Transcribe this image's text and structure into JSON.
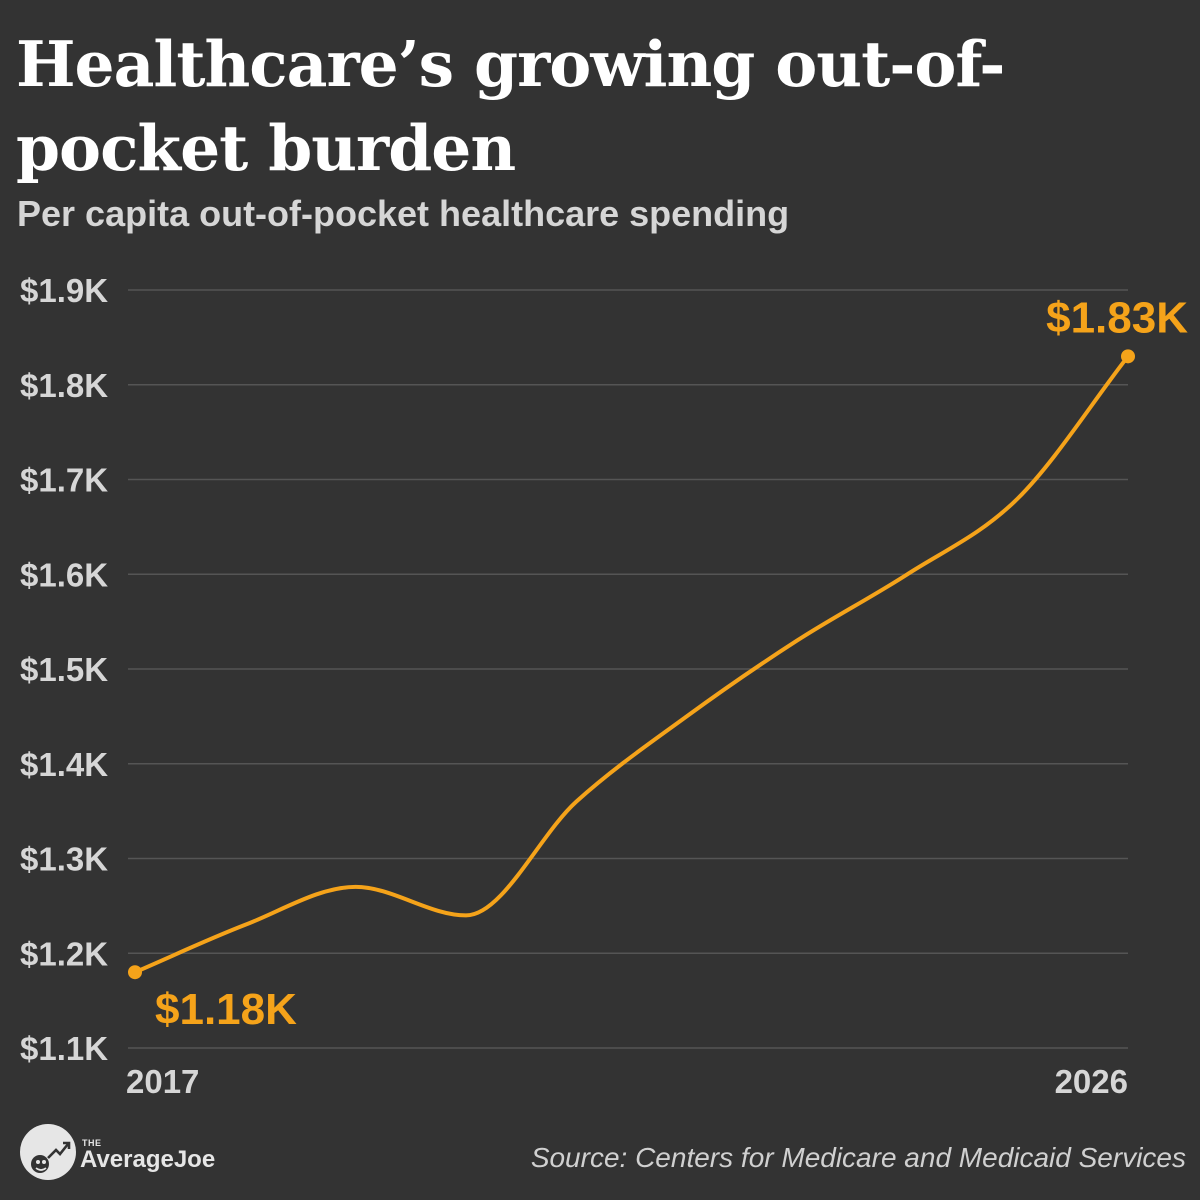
{
  "header": {
    "title": "Healthcare’s growing out-of-pocket burden",
    "subtitle": "Per capita out-of-pocket healthcare spending"
  },
  "footer": {
    "logo_small": "THE",
    "logo_name": "AverageJoe",
    "source": "Source: Centers for Medicare and Medicaid Services"
  },
  "colors": {
    "background": "#333333",
    "line": "#f5a31a",
    "grid": "#555555",
    "tick_text": "#d6d6d6"
  },
  "chart_data": {
    "type": "line",
    "title": "Healthcare’s growing out-of-pocket burden",
    "subtitle": "Per capita out-of-pocket healthcare spending",
    "xlabel": "",
    "ylabel": "",
    "x": [
      2017,
      2018,
      2019,
      2020,
      2021,
      2022,
      2023,
      2024,
      2025,
      2026
    ],
    "series": [
      {
        "values": [
          1.18,
          1.23,
          1.27,
          1.24,
          1.36,
          1.45,
          1.53,
          1.6,
          1.68,
          1.83
        ]
      }
    ],
    "ylim": [
      1.1,
      1.9
    ],
    "y_ticks": [
      1.1,
      1.2,
      1.3,
      1.4,
      1.5,
      1.6,
      1.7,
      1.8,
      1.9
    ],
    "y_tick_labels": [
      "$1.1K",
      "$1.2K",
      "$1.3K",
      "$1.4K",
      "$1.5K",
      "$1.6K",
      "$1.7K",
      "$1.8K",
      "$1.9K"
    ],
    "x_tick_labels": [
      {
        "x": 2017,
        "label": "2017"
      },
      {
        "x": 2026,
        "label": "2026"
      }
    ],
    "annotations": [
      {
        "x": 2017,
        "y": 1.18,
        "label": "$1.18K",
        "position": "below-right"
      },
      {
        "x": 2026,
        "y": 1.83,
        "label": "$1.83K",
        "position": "above-left"
      }
    ],
    "grid": true,
    "legend": "none"
  }
}
